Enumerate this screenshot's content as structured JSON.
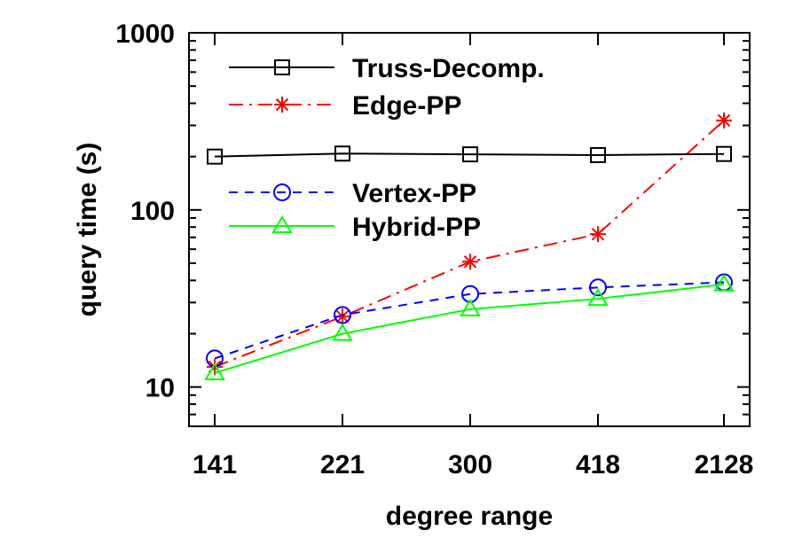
{
  "chart_data": {
    "type": "line",
    "xlabel": "degree range",
    "ylabel": "query time (s)",
    "yscale": "log",
    "ylim": [
      6,
      1000
    ],
    "yticks": [
      10,
      100,
      1000
    ],
    "yticklabels": [
      "10",
      "100",
      "1000"
    ],
    "categories": [
      "141",
      "221",
      "300",
      "418",
      "2128"
    ],
    "legend_position": "top-left",
    "grid": false,
    "series": [
      {
        "name": "Truss-Decomp.",
        "color": "#000000",
        "dash": "solid",
        "marker": "square",
        "values": [
          200,
          208,
          206,
          204,
          207
        ]
      },
      {
        "name": "Edge-PP",
        "color": "#ff0000",
        "dash": "dashdot",
        "marker": "star",
        "values": [
          13,
          25,
          51,
          73,
          320
        ]
      },
      {
        "name": "Vertex-PP",
        "color": "#0000ff",
        "dash": "dashed",
        "marker": "circle",
        "values": [
          14.5,
          25.5,
          33.5,
          36.5,
          39
        ]
      },
      {
        "name": "Hybrid-PP",
        "color": "#00ff00",
        "dash": "solid",
        "marker": "triangle",
        "values": [
          12,
          20,
          27.5,
          31.5,
          38
        ]
      }
    ]
  }
}
